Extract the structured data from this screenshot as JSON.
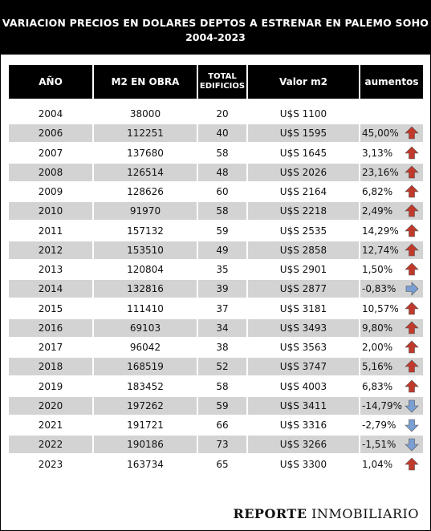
{
  "title_line1": "VARIACION PRECIOS EN DOLARES DEPTOS A ESTRENAR EN PALEMO SOHO",
  "title_line2": "2004-2023",
  "headers": {
    "year": "AÑO",
    "m2": "M2 EN OBRA",
    "total_line1": "TOTAL",
    "total_line2": "EDIFICIOS",
    "value": "Valor m2",
    "increase": "aumentos"
  },
  "colors": {
    "up_arrow": "#c0392b",
    "down_arrow": "#7a9fd4",
    "row_shade": "#d3d3d3"
  },
  "rows": [
    {
      "year": "2004",
      "m2": "38000",
      "buildings": "20",
      "value": "U$S 1100",
      "pct": "",
      "dir": ""
    },
    {
      "year": "2006",
      "m2": "112251",
      "buildings": "40",
      "value": "U$S 1595",
      "pct": "45,00%",
      "dir": "up"
    },
    {
      "year": "2007",
      "m2": "137680",
      "buildings": "58",
      "value": "U$S 1645",
      "pct": "3,13%",
      "dir": "up"
    },
    {
      "year": "2008",
      "m2": "126514",
      "buildings": "48",
      "value": "U$S 2026",
      "pct": "23,16%",
      "dir": "up"
    },
    {
      "year": "2009",
      "m2": "128626",
      "buildings": "60",
      "value": "U$S 2164",
      "pct": "6,82%",
      "dir": "up"
    },
    {
      "year": "2010",
      "m2": "91970",
      "buildings": "58",
      "value": "U$S 2218",
      "pct": "2,49%",
      "dir": "up"
    },
    {
      "year": "2011",
      "m2": "157132",
      "buildings": "59",
      "value": "U$S 2535",
      "pct": "14,29%",
      "dir": "up"
    },
    {
      "year": "2012",
      "m2": "153510",
      "buildings": "49",
      "value": "U$S 2858",
      "pct": "12,74%",
      "dir": "up"
    },
    {
      "year": "2013",
      "m2": "120804",
      "buildings": "35",
      "value": "U$S 2901",
      "pct": "1,50%",
      "dir": "up"
    },
    {
      "year": "2014",
      "m2": "132816",
      "buildings": "39",
      "value": "U$S 2877",
      "pct": "-0,83%",
      "dir": "right"
    },
    {
      "year": "2015",
      "m2": "111410",
      "buildings": "37",
      "value": "U$S 3181",
      "pct": "10,57%",
      "dir": "up"
    },
    {
      "year": "2016",
      "m2": "69103",
      "buildings": "34",
      "value": "U$S 3493",
      "pct": "9,80%",
      "dir": "up"
    },
    {
      "year": "2017",
      "m2": "96042",
      "buildings": "38",
      "value": "U$S 3563",
      "pct": "2,00%",
      "dir": "up"
    },
    {
      "year": "2018",
      "m2": "168519",
      "buildings": "52",
      "value": "U$S 3747",
      "pct": "5,16%",
      "dir": "up"
    },
    {
      "year": "2019",
      "m2": "183452",
      "buildings": "58",
      "value": "U$S 4003",
      "pct": "6,83%",
      "dir": "up"
    },
    {
      "year": "2020",
      "m2": "197262",
      "buildings": "59",
      "value": "U$S 3411",
      "pct": "-14,79%",
      "dir": "down"
    },
    {
      "year": "2021",
      "m2": "191721",
      "buildings": "66",
      "value": "U$S 3316",
      "pct": "-2,79%",
      "dir": "down"
    },
    {
      "year": "2022",
      "m2": "190186",
      "buildings": "73",
      "value": "U$S 3266",
      "pct": "-1,51%",
      "dir": "down"
    },
    {
      "year": "2023",
      "m2": "163734",
      "buildings": "65",
      "value": "U$S 3300",
      "pct": "1,04%",
      "dir": "up"
    }
  ],
  "footer_bold": "REPORTE",
  "footer_light": "INMOBILIARIO"
}
